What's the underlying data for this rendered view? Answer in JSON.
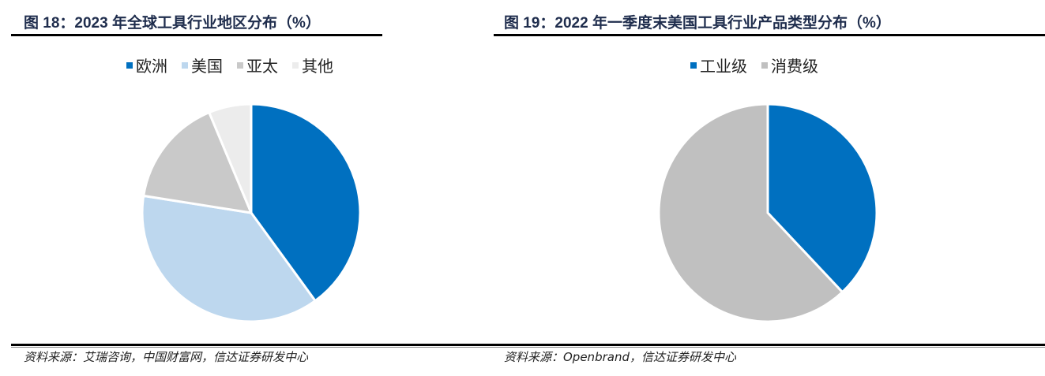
{
  "chart_data": [
    {
      "type": "pie",
      "title": "图 18：2023 年全球工具行业地区分布（%）",
      "categories": [
        "欧洲",
        "美国",
        "亚太",
        "其他"
      ],
      "values": [
        40.0,
        37.5,
        16.2,
        6.3
      ],
      "colors": [
        "#0070c0",
        "#bdd7ee",
        "#c9c9c9",
        "#ececec"
      ],
      "legend": "top",
      "source": "资料来源：艾瑞咨询，中国财富网，信达证券研发中心"
    },
    {
      "type": "pie",
      "title": "图 19：2022 年一季度末美国工具行业产品类型分布（%）",
      "categories": [
        "工业级",
        "消费级"
      ],
      "values": [
        38,
        62
      ],
      "colors": [
        "#0070c0",
        "#c0c0c0"
      ],
      "legend": "top",
      "source": "资料来源：Openbrand，信达证券研发中心"
    }
  ]
}
